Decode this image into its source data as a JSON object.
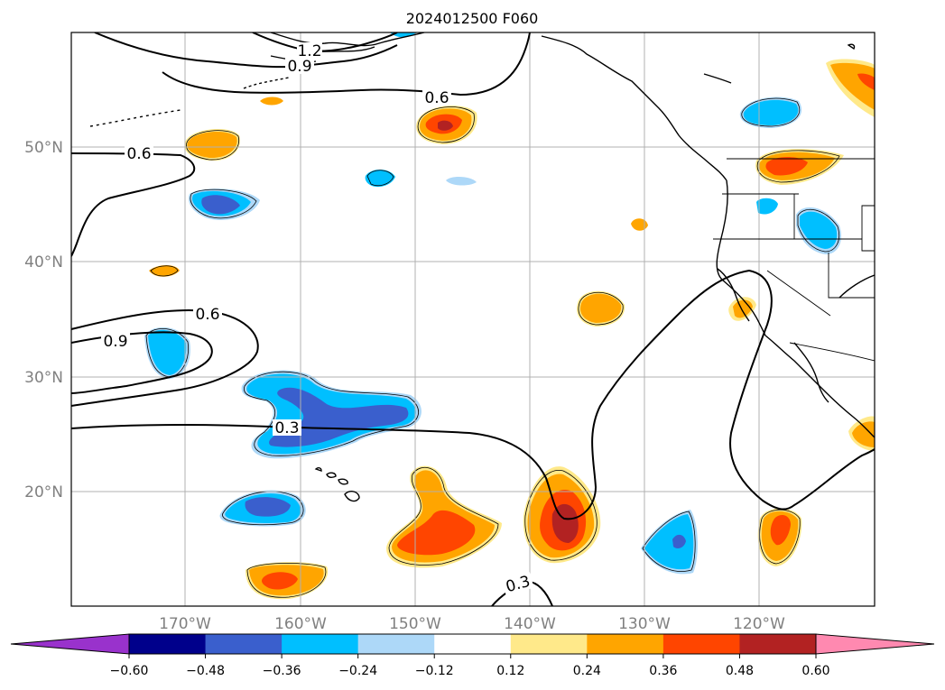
{
  "title": "2024012500 F060",
  "lat_labels": [
    "50°N",
    "40°N",
    "30°N",
    "20°N"
  ],
  "lon_labels": [
    "170°W",
    "160°W",
    "150°W",
    "140°W",
    "130°W",
    "120°W"
  ],
  "contour_labels": [
    "1.2",
    "0.9",
    "0.6",
    "0.6",
    "0.6",
    "0.9",
    "0.3",
    "0.3"
  ],
  "colorbar": {
    "ticks": [
      "−0.60",
      "−0.48",
      "−0.36",
      "−0.24",
      "−0.12",
      "0.12",
      "0.24",
      "0.36",
      "0.48",
      "0.60"
    ],
    "colors": [
      "#9932cc",
      "#00008b",
      "#3a5fcd",
      "#00bfff",
      "#add8f8",
      "#ffffff",
      "#ffe98a",
      "#ffa500",
      "#ff4500",
      "#b22222",
      "#ff89b0"
    ]
  }
}
